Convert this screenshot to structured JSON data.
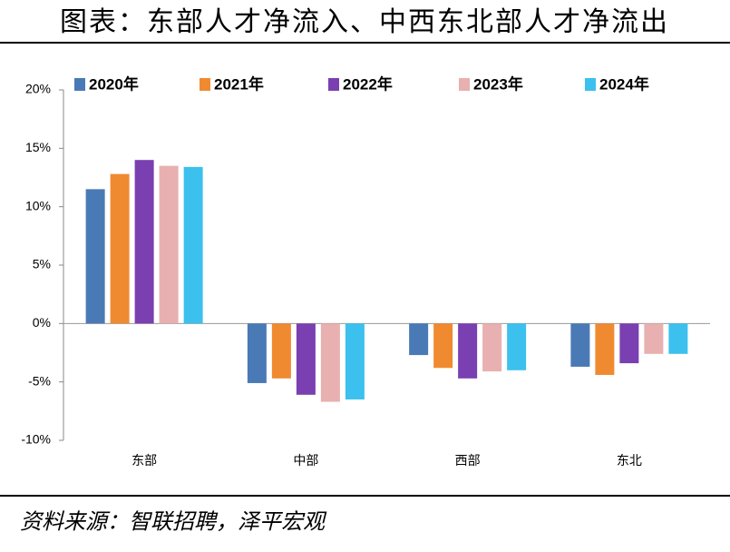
{
  "chart_data": {
    "type": "bar",
    "title": "图表：东部人才净流入、中西东北部人才净流出",
    "source": "资料来源：智联招聘，泽平宏观",
    "categories": [
      "东部",
      "中部",
      "西部",
      "东北"
    ],
    "series": [
      {
        "name": "2020年",
        "color": "#4a7ab5",
        "values": [
          11.5,
          -5.1,
          -2.7,
          -3.7
        ]
      },
      {
        "name": "2021年",
        "color": "#f08a30",
        "values": [
          12.8,
          -4.7,
          -3.8,
          -4.4
        ]
      },
      {
        "name": "2022年",
        "color": "#7a3fb0",
        "values": [
          14.0,
          -6.1,
          -4.7,
          -3.4
        ]
      },
      {
        "name": "2023年",
        "color": "#e8b0b0",
        "values": [
          13.5,
          -6.7,
          -4.1,
          -2.6
        ]
      },
      {
        "name": "2024年",
        "color": "#3cc0ee",
        "values": [
          13.4,
          -6.5,
          -4.0,
          -2.6
        ]
      }
    ],
    "ylim": [
      -10,
      20
    ],
    "yticks": [
      {
        "value": -10,
        "label": "-10%"
      },
      {
        "value": -5,
        "label": "-5%"
      },
      {
        "value": 0,
        "label": "0%"
      },
      {
        "value": 5,
        "label": "5%"
      },
      {
        "value": 10,
        "label": "10%"
      },
      {
        "value": 15,
        "label": "15%"
      },
      {
        "value": 20,
        "label": "20%"
      }
    ],
    "legend": "top"
  }
}
